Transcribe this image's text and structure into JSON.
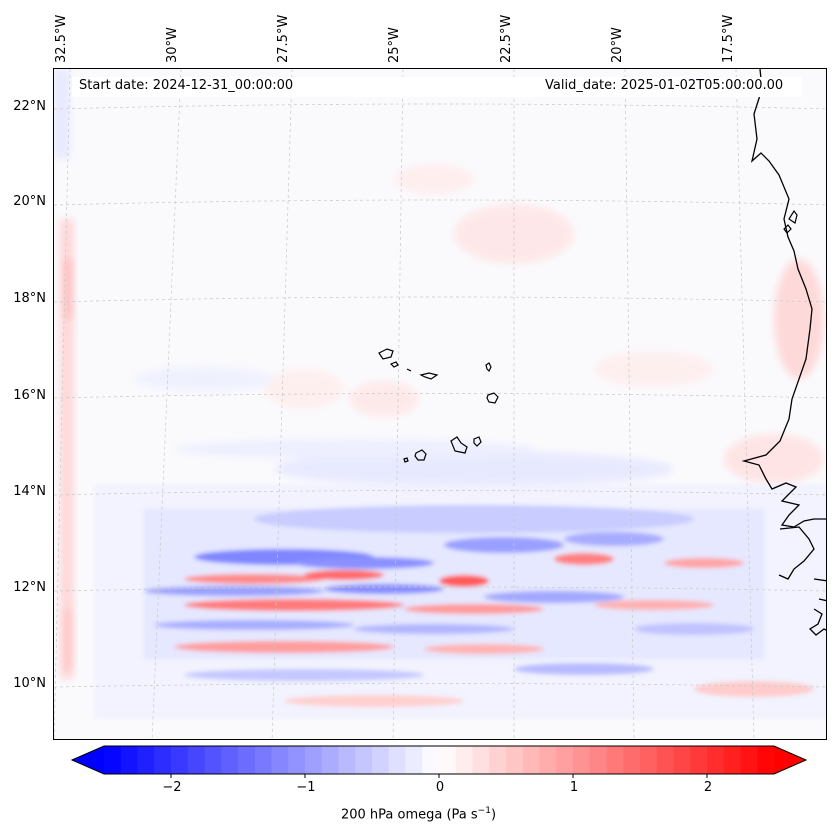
{
  "map": {
    "header": {
      "start_date": "Start date: 2024-12-31_00:00:00",
      "valid_date": "Valid_date: 2025-01-02T05:00:00.00"
    },
    "lon_ticks": [
      "32.5°W",
      "30°W",
      "27.5°W",
      "25°W",
      "22.5°W",
      "20°W",
      "17.5°W"
    ],
    "lat_ticks": [
      "22°N",
      "20°N",
      "18°N",
      "16°N",
      "14°N",
      "12°N",
      "10°N"
    ],
    "extent": {
      "lon_min": -33.0,
      "lon_max": -15.6,
      "lat_min": 8.8,
      "lat_max": 22.8
    },
    "colors": {
      "negative": "#0000ff",
      "neutral": "#ffffff",
      "positive": "#ff0000",
      "coast": "#000000"
    }
  },
  "colorbar": {
    "title": "200 hPa omega (Pa s",
    "title_superscript": "−1",
    "title_suffix": ")",
    "ticks": [
      "−2",
      "−1",
      "0",
      "1",
      "2"
    ],
    "tick_values": [
      -2,
      -1,
      0,
      1,
      2
    ],
    "vmin": -2.5,
    "vmax": 2.5
  }
}
